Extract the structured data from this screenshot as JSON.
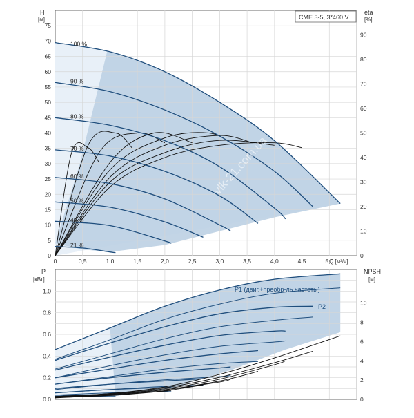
{
  "chart_data": [
    {
      "type": "line",
      "legend_box": "CME 3-5, 3*460 V",
      "watermark": "vlk-21.com.ua",
      "xlabel": "Q [м³/ч]",
      "ylabel_left_line1": "H",
      "ylabel_left_line2": "[м]",
      "ylabel_right_line1": "eta",
      "ylabel_right_line2": "[%]",
      "xlim": [
        0,
        5.5
      ],
      "ylim": [
        0,
        80
      ],
      "ylim_right": [
        0,
        100
      ],
      "grid": true,
      "x_ticks": [
        "0",
        "0,5",
        "1,0",
        "1,5",
        "2,0",
        "2,5",
        "3,0",
        "3,5",
        "4,0",
        "4,5",
        "5,0"
      ],
      "y_ticks": [
        "0",
        "5",
        "10",
        "15",
        "20",
        "25",
        "30",
        "35",
        "40",
        "45",
        "50",
        "55",
        "60",
        "65",
        "70",
        "75"
      ],
      "y2_ticks": [
        "0",
        "10",
        "20",
        "30",
        "40",
        "50",
        "60",
        "70",
        "80",
        "90"
      ],
      "operating_area_color": "#bcd0e3",
      "curve_color": "#1f4e7d",
      "head_curves": [
        {
          "label": "100 %",
          "x": [
            0,
            1.0,
            2.0,
            3.0,
            4.0,
            5.2
          ],
          "y": [
            69.5,
            66.5,
            60,
            50,
            37.5,
            17
          ]
        },
        {
          "label": "90 %",
          "x": [
            0,
            1.0,
            2.0,
            3.0,
            4.0,
            4.7
          ],
          "y": [
            56.5,
            53.5,
            47.5,
            39,
            27.5,
            16
          ]
        },
        {
          "label": "80 %",
          "x": [
            0,
            1.0,
            2.0,
            3.0,
            4.0,
            4.2
          ],
          "y": [
            45,
            42.5,
            37.5,
            29,
            15.5,
            12
          ]
        },
        {
          "label": "70 %",
          "x": [
            0,
            1.0,
            2.0,
            3.0,
            3.7
          ],
          "y": [
            34.5,
            32.5,
            27.5,
            19.5,
            10.5
          ]
        },
        {
          "label": "60 %",
          "x": [
            0,
            1.0,
            2.0,
            3.0,
            3.2
          ],
          "y": [
            25.5,
            23.5,
            18.5,
            10,
            8
          ]
        },
        {
          "label": "50 %",
          "x": [
            0,
            1.0,
            2.0,
            2.7
          ],
          "y": [
            17.5,
            15.8,
            11,
            6
          ]
        },
        {
          "label": "40 %",
          "x": [
            0,
            1.0,
            2.0,
            2.1
          ],
          "y": [
            11.2,
            9.8,
            4.8,
            4
          ]
        },
        {
          "label": "21 %",
          "x": [
            0,
            0.5,
            1.0,
            1.1
          ],
          "y": [
            3,
            2.5,
            1.2,
            1
          ]
        }
      ],
      "efficiency_curves": [
        {
          "x": [
            0,
            1.0,
            2.0,
            3.0,
            4.0,
            4.5
          ],
          "y": [
            0,
            28,
            40,
            45,
            46,
            44
          ]
        },
        {
          "x": [
            0,
            1.0,
            2.0,
            3.0,
            4.0
          ],
          "y": [
            0,
            30,
            42,
            47,
            45
          ]
        },
        {
          "x": [
            0,
            1.0,
            2.0,
            3.0,
            3.6
          ],
          "y": [
            0,
            32,
            45,
            49,
            46
          ]
        },
        {
          "x": [
            0,
            1.0,
            2.0,
            2.8,
            3.2
          ],
          "y": [
            0,
            35,
            48,
            50,
            46
          ]
        },
        {
          "x": [
            0,
            1.0,
            1.8,
            2.5
          ],
          "y": [
            0,
            38,
            50,
            46
          ]
        },
        {
          "x": [
            0,
            0.8,
            1.5,
            2.0
          ],
          "y": [
            0,
            42,
            50,
            46
          ]
        },
        {
          "x": [
            0,
            0.6,
            1.1,
            1.4
          ],
          "y": [
            0,
            45,
            50,
            44
          ]
        },
        {
          "x": [
            0,
            0.3,
            0.6,
            0.8
          ],
          "y": [
            0,
            42,
            44,
            38
          ]
        }
      ]
    },
    {
      "type": "line",
      "xlim": [
        0,
        5.5
      ],
      "ylim": [
        0,
        1.2
      ],
      "ylim_right": [
        0,
        13.5
      ],
      "grid": true,
      "ylabel_left_line1": "P",
      "ylabel_left_line2": "[кВт]",
      "ylabel_right_line1": "NPSH",
      "ylabel_right_line2": "[м]",
      "y_ticks": [
        "0.0",
        "0.2",
        "0.4",
        "0.6",
        "0.8",
        "1.0"
      ],
      "y2_ticks": [
        "0",
        "2",
        "4",
        "6",
        "8",
        "10"
      ],
      "label_p1": "P1 (двиг.+преобр-ль частоты)",
      "label_p2": "P2",
      "power_p1_curves": [
        {
          "x": [
            0,
            1.0,
            2.0,
            3.0,
            4.0,
            5.2
          ],
          "y": [
            0.46,
            0.66,
            0.86,
            1.01,
            1.11,
            1.16
          ]
        },
        {
          "x": [
            0,
            1.0,
            2.0,
            3.0,
            4.0,
            4.7
          ],
          "y": [
            0.36,
            0.52,
            0.67,
            0.79,
            0.85,
            0.86
          ]
        },
        {
          "x": [
            0,
            1.0,
            2.0,
            3.0,
            4.0,
            4.2
          ],
          "y": [
            0.27,
            0.39,
            0.5,
            0.59,
            0.63,
            0.63
          ]
        },
        {
          "x": [
            0,
            1.0,
            2.0,
            3.0,
            3.7
          ],
          "y": [
            0.2,
            0.28,
            0.36,
            0.42,
            0.45
          ]
        },
        {
          "x": [
            0,
            1.0,
            2.0,
            3.0,
            3.2
          ],
          "y": [
            0.14,
            0.2,
            0.25,
            0.29,
            0.3
          ]
        },
        {
          "x": [
            0,
            1.0,
            2.0,
            2.7
          ],
          "y": [
            0.1,
            0.14,
            0.17,
            0.19
          ]
        },
        {
          "x": [
            0,
            1.0,
            2.0,
            2.1
          ],
          "y": [
            0.06,
            0.09,
            0.11,
            0.11
          ]
        },
        {
          "x": [
            0,
            0.5,
            1.0,
            1.1
          ],
          "y": [
            0.03,
            0.04,
            0.045,
            0.045
          ]
        }
      ],
      "power_p2_curves": [
        {
          "x": [
            0,
            1.0,
            2.0,
            3.0,
            4.0,
            5.2
          ],
          "y": [
            0.37,
            0.55,
            0.74,
            0.88,
            0.98,
            1.03
          ]
        },
        {
          "x": [
            0,
            1.0,
            2.0,
            3.0,
            4.0,
            4.7
          ],
          "y": [
            0.28,
            0.42,
            0.56,
            0.67,
            0.73,
            0.76
          ]
        },
        {
          "x": [
            0,
            1.0,
            2.0,
            3.0,
            4.0,
            4.2
          ],
          "y": [
            0.2,
            0.31,
            0.41,
            0.49,
            0.53,
            0.54
          ]
        },
        {
          "x": [
            0,
            1.0,
            2.0,
            3.0,
            3.7
          ],
          "y": [
            0.14,
            0.21,
            0.28,
            0.33,
            0.35
          ]
        },
        {
          "x": [
            0,
            1.0,
            2.0,
            3.0,
            3.2
          ],
          "y": [
            0.09,
            0.14,
            0.18,
            0.21,
            0.22
          ]
        },
        {
          "x": [
            0,
            1.0,
            2.0,
            2.7
          ],
          "y": [
            0.06,
            0.09,
            0.12,
            0.13
          ]
        },
        {
          "x": [
            0,
            1.0,
            2.0,
            2.1
          ],
          "y": [
            0.04,
            0.06,
            0.07,
            0.07
          ]
        },
        {
          "x": [
            0,
            0.5,
            1.0,
            1.1
          ],
          "y": [
            0.02,
            0.025,
            0.03,
            0.03
          ]
        }
      ],
      "npsh_curves": [
        {
          "x": [
            0,
            1.0,
            2.0,
            3.0,
            4.0,
            5.2
          ],
          "y": [
            0.3,
            0.6,
            1.3,
            2.6,
            4.3,
            6.6
          ]
        },
        {
          "x": [
            0,
            1.0,
            2.0,
            3.0,
            4.0,
            4.7
          ],
          "y": [
            0.3,
            0.6,
            1.2,
            2.3,
            3.8,
            5.0
          ]
        },
        {
          "x": [
            0,
            1.0,
            2.0,
            3.0,
            4.0,
            4.2
          ],
          "y": [
            0.3,
            0.55,
            1.1,
            2.1,
            3.6,
            4.0
          ]
        },
        {
          "x": [
            0,
            1.0,
            2.0,
            3.0,
            3.7
          ],
          "y": [
            0.25,
            0.5,
            1.0,
            1.9,
            2.9
          ]
        },
        {
          "x": [
            0,
            1.0,
            2.0,
            3.0,
            3.2
          ],
          "y": [
            0.25,
            0.5,
            1.0,
            1.8,
            2.1
          ]
        },
        {
          "x": [
            0,
            1.0,
            2.0,
            2.7
          ],
          "y": [
            0.2,
            0.45,
            0.9,
            1.5
          ]
        },
        {
          "x": [
            0,
            1.0,
            2.0,
            2.1
          ],
          "y": [
            0.2,
            0.4,
            0.85,
            0.9
          ]
        },
        {
          "x": [
            0,
            0.5,
            1.0,
            1.1
          ],
          "y": [
            0.15,
            0.3,
            0.5,
            0.55
          ]
        }
      ]
    }
  ]
}
